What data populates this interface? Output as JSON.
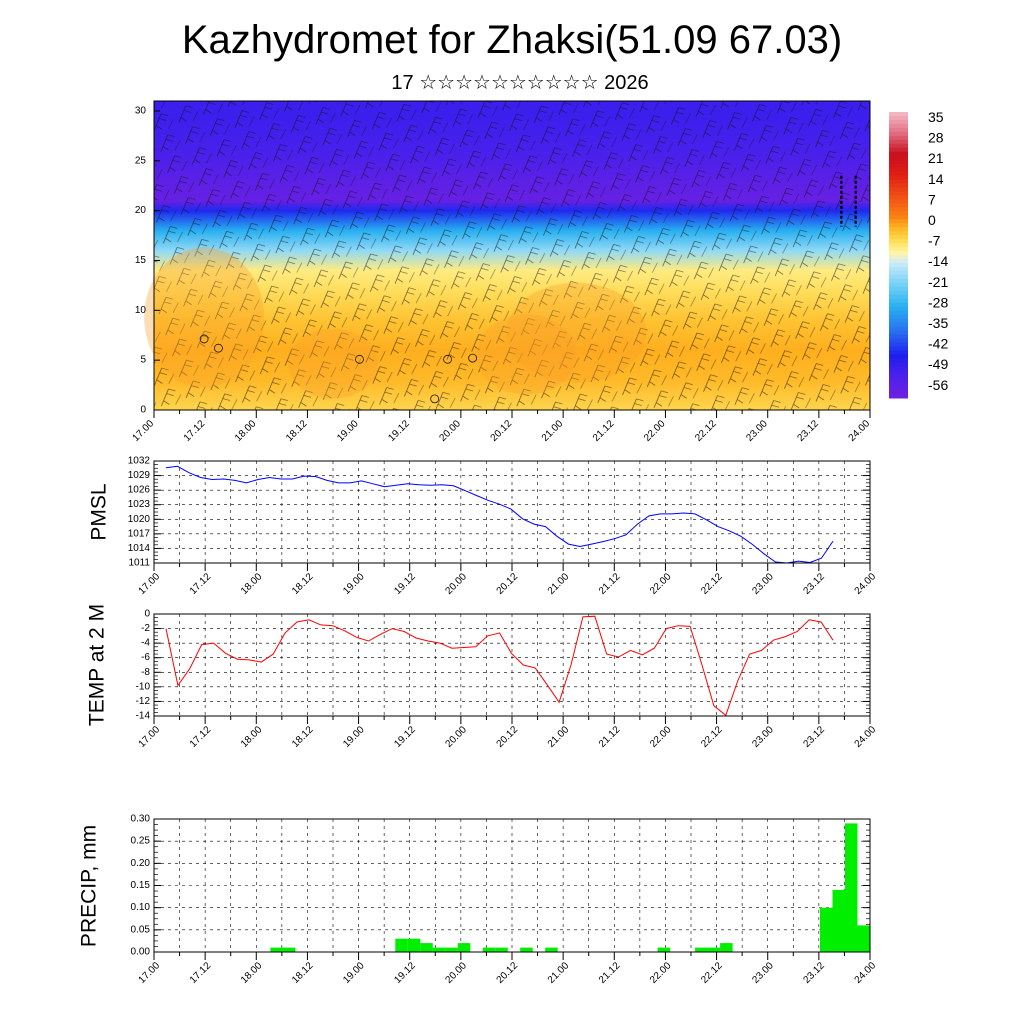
{
  "header": {
    "title": "Kazhydromet for Zhaksi(51.09 67.03)",
    "subtitle": "17 ☆☆☆☆☆☆☆☆☆☆ 2026"
  },
  "colors": {
    "pmsl_line": "#0000ff",
    "temp_line": "#ff0000",
    "precip_bar": "#00ee00",
    "grid": "#000000"
  },
  "time_labels": [
    "17.00",
    "17.12",
    "18.00",
    "18.12",
    "19.00",
    "19.12",
    "20.00",
    "20.12",
    "21.00",
    "21.12",
    "22.00",
    "22.12",
    "23.00",
    "23.12",
    "24.00"
  ],
  "chart_data": [
    {
      "type": "heatmap",
      "name": "cross_section",
      "title": "Temperature cross-section with wind barbs",
      "x_categories": [
        "17.00",
        "17.12",
        "18.00",
        "18.12",
        "19.00",
        "19.12",
        "20.00",
        "20.12",
        "21.00",
        "21.12",
        "22.00",
        "22.12",
        "23.00",
        "23.12",
        "24.00"
      ],
      "yticks": [
        0,
        5,
        10,
        15,
        20,
        25,
        30
      ],
      "ylim": [
        0,
        31
      ],
      "colorbar": {
        "labels": [
          "35",
          "28",
          "21",
          "14",
          "7",
          "0",
          "-7",
          "-14",
          "-21",
          "-28",
          "-35",
          "-42",
          "-49",
          "-56"
        ],
        "values": [
          35,
          28,
          21,
          14,
          7,
          0,
          -7,
          -14,
          -21,
          -28,
          -35,
          -42,
          -49,
          -56
        ]
      },
      "layers": [
        {
          "level": 0,
          "temp": -7
        },
        {
          "level": 3,
          "temp": -4
        },
        {
          "level": 6,
          "temp": -3
        },
        {
          "level": 9,
          "temp": -5
        },
        {
          "level": 12,
          "temp": -8
        },
        {
          "level": 14,
          "temp": -10
        },
        {
          "level": 16,
          "temp": -20
        },
        {
          "level": 18,
          "temp": -30
        },
        {
          "level": 20,
          "temp": -45
        },
        {
          "level": 21,
          "temp": -58
        },
        {
          "level": 23,
          "temp": -56
        },
        {
          "level": 26,
          "temp": -52
        },
        {
          "level": 30,
          "temp": -50
        },
        {
          "level": 31,
          "temp": -50
        }
      ]
    },
    {
      "type": "line",
      "name": "pmsl",
      "ylabel": "PMSL",
      "ylim": [
        1011,
        1032
      ],
      "yticks": [
        1011,
        1014,
        1017,
        1020,
        1023,
        1026,
        1029,
        1032
      ],
      "x": [
        0,
        1,
        2,
        3,
        4,
        5,
        6,
        7,
        8,
        9,
        10,
        11,
        12,
        13,
        14,
        15,
        16,
        17,
        18,
        19,
        20,
        21,
        22,
        23,
        24,
        25,
        26,
        27,
        28,
        29,
        30,
        31,
        32,
        33,
        34,
        35,
        36,
        37,
        38,
        39,
        40,
        41,
        42,
        43,
        44,
        45,
        46,
        47,
        48,
        49,
        50,
        51,
        52,
        53,
        54,
        55,
        56
      ],
      "values": [
        1030.6,
        1030.9,
        1029.6,
        1028.6,
        1028.2,
        1028.3,
        1028.0,
        1027.5,
        1028.2,
        1028.6,
        1028.3,
        1028.3,
        1028.9,
        1028.8,
        1028.0,
        1027.5,
        1027.5,
        1027.9,
        1027.3,
        1026.7,
        1027.0,
        1027.3,
        1027.1,
        1027.0,
        1027.1,
        1026.9,
        1025.9,
        1024.9,
        1023.9,
        1023.1,
        1022.1,
        1020.1,
        1019.0,
        1018.5,
        1016.5,
        1014.9,
        1014.4,
        1014.9,
        1015.4,
        1016.0,
        1016.8,
        1019.0,
        1020.7,
        1021.1,
        1021.1,
        1021.3,
        1021.1,
        1019.9,
        1018.5,
        1017.6,
        1016.5,
        1014.8,
        1012.9,
        1011.2,
        1011.0,
        1011.4,
        1011.1
      ],
      "extra_values": [
        1012.0,
        1015.5
      ]
    },
    {
      "type": "line",
      "name": "temp2m",
      "ylabel": "TEMP at 2 M",
      "ylim": [
        -14,
        0
      ],
      "yticks": [
        0,
        -2,
        -4,
        -6,
        -8,
        -10,
        -12,
        -14
      ],
      "values": [
        -2.0,
        -9.8,
        -7.5,
        -4.2,
        -4.0,
        -5.4,
        -6.2,
        -6.3,
        -6.6,
        -5.5,
        -2.6,
        -1.1,
        -0.8,
        -1.5,
        -1.6,
        -2.3,
        -3.2,
        -3.7,
        -2.8,
        -2.0,
        -2.4,
        -3.3,
        -3.7,
        -4.0,
        -4.7,
        -4.6,
        -4.5,
        -3.0,
        -2.6,
        -5.4,
        -7.0,
        -7.4,
        -9.7,
        -12.1,
        -7.0,
        -0.4,
        -0.3,
        -5.5,
        -5.9,
        -5.0,
        -5.6,
        -4.7,
        -2.0,
        -1.6,
        -1.7,
        -7.0,
        -12.6,
        -13.9,
        -9.2,
        -5.5,
        -5.0,
        -3.6,
        -3.1,
        -2.4,
        -0.8,
        -1.1,
        -3.6
      ]
    },
    {
      "type": "bar",
      "name": "precip",
      "ylabel": "PRECIP, mm",
      "ylim": [
        0,
        0.3
      ],
      "yticks": [
        "0.00",
        "0.05",
        "0.10",
        "0.15",
        "0.20",
        "0.25",
        "0.30"
      ],
      "values": [
        0,
        0,
        0,
        0,
        0,
        0,
        0,
        0,
        0,
        0.01,
        0.01,
        0,
        0,
        0,
        0,
        0,
        0,
        0,
        0,
        0.03,
        0.03,
        0.02,
        0.01,
        0.01,
        0.02,
        0,
        0.01,
        0.01,
        0,
        0.01,
        0,
        0.01,
        0,
        0,
        0,
        0,
        0,
        0,
        0,
        0,
        0.01,
        0,
        0,
        0.01,
        0.01,
        0.02,
        0,
        0,
        0,
        0,
        0,
        0,
        0,
        0.1,
        0.14,
        0.29,
        0.06
      ]
    }
  ]
}
